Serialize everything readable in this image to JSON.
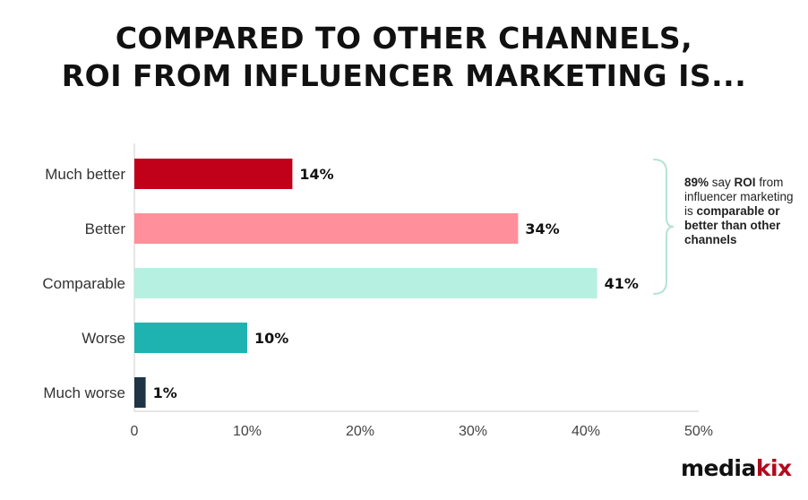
{
  "title": {
    "line1": "COMPARED TO OTHER CHANNELS,",
    "line2": "ROI FROM INFLUENCER MARKETING IS..."
  },
  "chart_data": {
    "type": "bar",
    "orientation": "horizontal",
    "categories": [
      "Much better",
      "Better",
      "Comparable",
      "Worse",
      "Much worse"
    ],
    "values": [
      14,
      34,
      41,
      10,
      1
    ],
    "value_labels": [
      "14%",
      "34%",
      "41%",
      "10%",
      "1%"
    ],
    "colors": [
      "#c1001a",
      "#ff8f9b",
      "#b6f0e1",
      "#1eb3b1",
      "#1f3445"
    ],
    "xlim": [
      0,
      50
    ],
    "xticks": [
      0,
      10,
      20,
      30,
      40,
      50
    ],
    "xtick_labels": [
      "0",
      "10%",
      "20%",
      "30%",
      "40%",
      "50%"
    ],
    "xlabel": "",
    "ylabel": "",
    "grid": false
  },
  "annotation": {
    "bracket_color": "#b6e3d6",
    "pct": "89%",
    "say": " say ",
    "roi": "ROI",
    "from": "from influencer marketing is",
    "bold": "comparable or better than other channels"
  },
  "logo": {
    "media": "media",
    "kix": "kix"
  }
}
